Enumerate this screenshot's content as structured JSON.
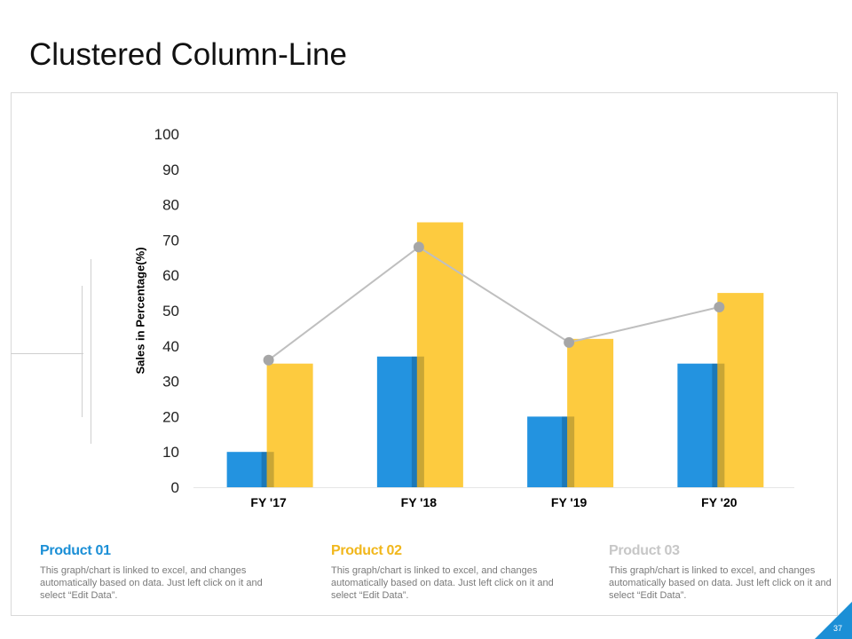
{
  "slide": {
    "title": "Clustered Column-Line",
    "page_number": "37",
    "accent_color": "#1b8fd6"
  },
  "chart_data": {
    "type": "bar",
    "subtype": "clustered-column-line",
    "title": "",
    "xlabel": "",
    "ylabel": "Sales in Percentage(%)",
    "ylim": [
      0,
      100
    ],
    "yticks": [
      0,
      10,
      20,
      30,
      40,
      50,
      60,
      70,
      80,
      90,
      100
    ],
    "grid": false,
    "categories": [
      "FY '17",
      "FY '18",
      "FY '19",
      "FY '20"
    ],
    "series": [
      {
        "name": "Product 01",
        "type": "bar",
        "color": "#2393e0",
        "values": [
          10,
          37,
          20,
          35
        ]
      },
      {
        "name": "Product 02",
        "type": "bar",
        "color": "#fdcb3f",
        "values": [
          35,
          75,
          42,
          55
        ]
      },
      {
        "name": "Product 03",
        "type": "line",
        "color": "#bfbfbf",
        "marker_color": "#a6a6a6",
        "values": [
          36,
          68,
          41,
          51
        ]
      }
    ]
  },
  "legend_cards": [
    {
      "name": "Product 01",
      "color": "#1b8fd6",
      "text": "This graph/chart is linked to excel, and changes automatically based on data. Just left click on it and select “Edit Data”."
    },
    {
      "name": "Product 02",
      "color": "#f1b71c",
      "text": "This graph/chart is linked to excel, and changes automatically based on data. Just left click on it and select “Edit Data”."
    },
    {
      "name": "Product 03",
      "color": "#c7c7c7",
      "text": "This graph/chart is linked to excel, and changes automatically based on data. Just left click on it and select “Edit Data”."
    }
  ]
}
